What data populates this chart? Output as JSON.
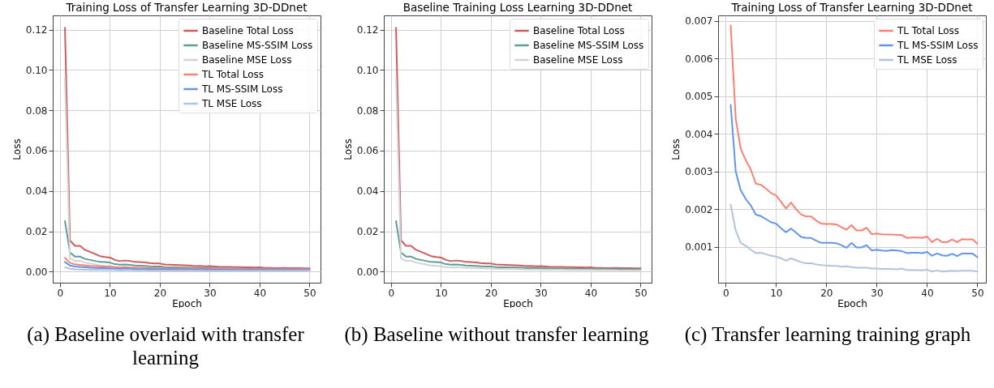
{
  "chart_data": [
    {
      "type": "line",
      "title": "Training Loss of Transfer Learning 3D-DDnet",
      "xlabel": "Epoch",
      "ylabel": "Loss",
      "x": [
        1,
        2,
        3,
        4,
        5,
        6,
        7,
        8,
        9,
        10,
        11,
        12,
        13,
        14,
        15,
        16,
        17,
        18,
        19,
        20,
        21,
        22,
        23,
        24,
        25,
        26,
        27,
        28,
        29,
        30,
        31,
        32,
        33,
        34,
        35,
        36,
        37,
        38,
        39,
        40,
        41,
        42,
        43,
        44,
        45,
        46,
        47,
        48,
        49,
        50
      ],
      "xlim": [
        -1.45,
        52.2
      ],
      "xticks": [
        0,
        10,
        20,
        30,
        40,
        50
      ],
      "ylim": [
        -0.0055,
        0.1271
      ],
      "yticks": [
        {
          "value": 0,
          "label": "0.00"
        },
        {
          "value": 0.02,
          "label": "0.02"
        },
        {
          "value": 0.04,
          "label": "0.04"
        },
        {
          "value": 0.06,
          "label": "0.06"
        },
        {
          "value": 0.08,
          "label": "0.08"
        },
        {
          "value": 0.1,
          "label": "0.10"
        },
        {
          "value": 0.12,
          "label": "0.12"
        }
      ],
      "grid": true,
      "legend": "top right",
      "line_style": "solid",
      "annotations": [
        "(a) Baseline overlaid with transfer learning"
      ],
      "series": [
        {
          "name": "Baseline Total Loss",
          "color": "#cd5c5c",
          "values": [
            0.121,
            0.0155,
            0.0128,
            0.0128,
            0.0108,
            0.0098,
            0.0088,
            0.0077,
            0.0073,
            0.007,
            0.0058,
            0.0052,
            0.0055,
            0.0053,
            0.0048,
            0.0047,
            0.0045,
            0.0042,
            0.004,
            0.004,
            0.0035,
            0.0034,
            0.0033,
            0.0032,
            0.0031,
            0.003,
            0.0027,
            0.0028,
            0.0026,
            0.0027,
            0.0025,
            0.0023,
            0.0023,
            0.0023,
            0.0022,
            0.0022,
            0.0021,
            0.0021,
            0.002,
            0.0021,
            0.0018,
            0.0018,
            0.0017,
            0.0017,
            0.0018,
            0.0017,
            0.0017,
            0.0017,
            0.0016,
            0.0016
          ]
        },
        {
          "name": "Baseline MS-SSIM Loss",
          "color": "#5f9e98",
          "values": [
            0.025,
            0.0095,
            0.0075,
            0.0075,
            0.0063,
            0.0058,
            0.0053,
            0.0048,
            0.0047,
            0.0045,
            0.0037,
            0.0034,
            0.0035,
            0.0033,
            0.003,
            0.0029,
            0.0028,
            0.0026,
            0.0025,
            0.0025,
            0.0022,
            0.0021,
            0.0021,
            0.002,
            0.002,
            0.0019,
            0.0017,
            0.0018,
            0.0017,
            0.0017,
            0.0016,
            0.0015,
            0.0015,
            0.0015,
            0.0014,
            0.0014,
            0.0014,
            0.0013,
            0.0013,
            0.0014,
            0.0012,
            0.0012,
            0.0012,
            0.0011,
            0.0012,
            0.0011,
            0.0011,
            0.0011,
            0.0011,
            0.0011
          ]
        },
        {
          "name": "Baseline MSE Loss",
          "color": "#d3d3d3",
          "values": [
            0.096,
            0.0065,
            0.0053,
            0.0053,
            0.0045,
            0.004,
            0.0035,
            0.003,
            0.0028,
            0.0026,
            0.0022,
            0.002,
            0.0021,
            0.002,
            0.0018,
            0.0018,
            0.0017,
            0.0016,
            0.0015,
            0.0015,
            0.0013,
            0.0013,
            0.0012,
            0.0012,
            0.0012,
            0.0011,
            0.001,
            0.001,
            0.001,
            0.001,
            0.0009,
            0.0009,
            0.0009,
            0.0009,
            0.0008,
            0.0008,
            0.0008,
            0.0008,
            0.0008,
            0.0008,
            0.0007,
            0.0007,
            0.0007,
            0.0007,
            0.0007,
            0.0006,
            0.0006,
            0.0006,
            0.0006,
            0.0006
          ]
        },
        {
          "name": "TL Total Loss",
          "color": "#fa8072",
          "values": [
            0.0069,
            0.0044,
            0.0036,
            0.0033,
            0.0031,
            0.0027,
            0.0027,
            0.0026,
            0.0024,
            0.0024,
            0.0022,
            0.002,
            0.0022,
            0.002,
            0.0019,
            0.0018,
            0.0018,
            0.0017,
            0.0016,
            0.0016,
            0.0016,
            0.0016,
            0.0015,
            0.0015,
            0.0016,
            0.0014,
            0.0014,
            0.0015,
            0.0013,
            0.0014,
            0.0013,
            0.0013,
            0.0013,
            0.0013,
            0.0013,
            0.0012,
            0.0013,
            0.0013,
            0.0012,
            0.0013,
            0.0011,
            0.0012,
            0.0011,
            0.0011,
            0.0012,
            0.0011,
            0.0012,
            0.0012,
            0.0012,
            0.0011
          ]
        },
        {
          "name": "TL MS-SSIM Loss",
          "color": "#6495ed",
          "values": [
            0.0048,
            0.003,
            0.0025,
            0.0023,
            0.0021,
            0.0019,
            0.0018,
            0.0017,
            0.0017,
            0.0016,
            0.0015,
            0.0014,
            0.0015,
            0.0014,
            0.0013,
            0.0012,
            0.0012,
            0.0012,
            0.0011,
            0.0011,
            0.0011,
            0.0011,
            0.0011,
            0.001,
            0.0011,
            0.001,
            0.001,
            0.0011,
            0.0009,
            0.0009,
            0.0009,
            0.0009,
            0.0009,
            0.0009,
            0.0009,
            0.0008,
            0.0009,
            0.0009,
            0.0008,
            0.0009,
            0.0008,
            0.0008,
            0.0008,
            0.0008,
            0.0008,
            0.0008,
            0.0008,
            0.0008,
            0.0008,
            0.0007
          ]
        },
        {
          "name": "TL MSE Loss",
          "color": "#b0c4de",
          "values": [
            0.0021,
            0.0014,
            0.0011,
            0.001,
            0.0009,
            0.0008,
            0.0009,
            0.0008,
            0.0008,
            0.0008,
            0.0007,
            0.0006,
            0.0007,
            0.0007,
            0.0006,
            0.0006,
            0.0006,
            0.0005,
            0.0005,
            0.0005,
            0.0005,
            0.0005,
            0.0005,
            0.0005,
            0.0005,
            0.0005,
            0.0005,
            0.0005,
            0.0004,
            0.0004,
            0.0004,
            0.0004,
            0.0004,
            0.0004,
            0.0004,
            0.0004,
            0.0004,
            0.0004,
            0.0004,
            0.0004,
            0.0004,
            0.0004,
            0.0004,
            0.0004,
            0.0004,
            0.0004,
            0.0004,
            0.0004,
            0.0004,
            0.0004
          ]
        }
      ]
    },
    {
      "type": "line",
      "title": "Baseline Training Loss Learning 3D-DDnet",
      "xlabel": "Epoch",
      "ylabel": "Loss",
      "x": [
        1,
        2,
        3,
        4,
        5,
        6,
        7,
        8,
        9,
        10,
        11,
        12,
        13,
        14,
        15,
        16,
        17,
        18,
        19,
        20,
        21,
        22,
        23,
        24,
        25,
        26,
        27,
        28,
        29,
        30,
        31,
        32,
        33,
        34,
        35,
        36,
        37,
        38,
        39,
        40,
        41,
        42,
        43,
        44,
        45,
        46,
        47,
        48,
        49,
        50
      ],
      "xlim": [
        -1.45,
        52.2
      ],
      "xticks": [
        0,
        10,
        20,
        30,
        40,
        50
      ],
      "ylim": [
        -0.0055,
        0.1271
      ],
      "yticks": [
        {
          "value": 0,
          "label": "0.00"
        },
        {
          "value": 0.02,
          "label": "0.02"
        },
        {
          "value": 0.04,
          "label": "0.04"
        },
        {
          "value": 0.06,
          "label": "0.06"
        },
        {
          "value": 0.08,
          "label": "0.08"
        },
        {
          "value": 0.1,
          "label": "0.10"
        },
        {
          "value": 0.12,
          "label": "0.12"
        }
      ],
      "grid": true,
      "legend": "top right",
      "line_style": "solid",
      "annotations": [
        "(b) Baseline without transfer learning"
      ],
      "series": [
        {
          "name": "Baseline Total Loss",
          "color": "#cd5c5c",
          "values": [
            0.121,
            0.0155,
            0.0128,
            0.0128,
            0.0108,
            0.0098,
            0.0088,
            0.0077,
            0.0073,
            0.007,
            0.0058,
            0.0052,
            0.0055,
            0.0053,
            0.0048,
            0.0047,
            0.0045,
            0.0042,
            0.004,
            0.004,
            0.0035,
            0.0034,
            0.0033,
            0.0032,
            0.0031,
            0.003,
            0.0027,
            0.0028,
            0.0026,
            0.0027,
            0.0025,
            0.0023,
            0.0023,
            0.0023,
            0.0022,
            0.0022,
            0.0021,
            0.0021,
            0.002,
            0.0021,
            0.0018,
            0.0018,
            0.0017,
            0.0017,
            0.0018,
            0.0017,
            0.0017,
            0.0017,
            0.0016,
            0.0016
          ]
        },
        {
          "name": "Baseline MS-SSIM Loss",
          "color": "#5f9e98",
          "values": [
            0.025,
            0.0095,
            0.0075,
            0.0075,
            0.0063,
            0.0058,
            0.0053,
            0.0048,
            0.0047,
            0.0045,
            0.0037,
            0.0034,
            0.0035,
            0.0033,
            0.003,
            0.0029,
            0.0028,
            0.0026,
            0.0025,
            0.0025,
            0.0022,
            0.0021,
            0.0021,
            0.002,
            0.002,
            0.0019,
            0.0017,
            0.0018,
            0.0017,
            0.0017,
            0.0016,
            0.0015,
            0.0015,
            0.0015,
            0.0014,
            0.0014,
            0.0014,
            0.0013,
            0.0013,
            0.0014,
            0.0012,
            0.0012,
            0.0012,
            0.0011,
            0.0012,
            0.0011,
            0.0011,
            0.0011,
            0.0011,
            0.0011
          ]
        },
        {
          "name": "Baseline MSE Loss",
          "color": "#d3d3d3",
          "values": [
            0.096,
            0.0065,
            0.0053,
            0.0053,
            0.0045,
            0.004,
            0.0035,
            0.003,
            0.0028,
            0.0026,
            0.0022,
            0.002,
            0.0021,
            0.002,
            0.0018,
            0.0018,
            0.0017,
            0.0016,
            0.0015,
            0.0015,
            0.0013,
            0.0013,
            0.0012,
            0.0012,
            0.0012,
            0.0011,
            0.001,
            0.001,
            0.001,
            0.001,
            0.0009,
            0.0009,
            0.0009,
            0.0009,
            0.0008,
            0.0008,
            0.0008,
            0.0008,
            0.0008,
            0.0008,
            0.0007,
            0.0007,
            0.0007,
            0.0007,
            0.0007,
            0.0006,
            0.0006,
            0.0006,
            0.0006,
            0.0006
          ]
        }
      ]
    },
    {
      "type": "line",
      "title": "Training Loss of Transfer Learning 3D-DDnet",
      "xlabel": "Epoch",
      "ylabel": "Loss",
      "x": [
        1,
        2,
        3,
        4,
        5,
        6,
        7,
        8,
        9,
        10,
        11,
        12,
        13,
        14,
        15,
        16,
        17,
        18,
        19,
        20,
        21,
        22,
        23,
        24,
        25,
        26,
        27,
        28,
        29,
        30,
        31,
        32,
        33,
        34,
        35,
        36,
        37,
        38,
        39,
        40,
        41,
        42,
        43,
        44,
        45,
        46,
        47,
        48,
        49,
        50
      ],
      "xlim": [
        -1.5,
        51.7
      ],
      "xticks": [
        0,
        10,
        20,
        30,
        40,
        50
      ],
      "ylim": [
        5.5e-05,
        0.00714
      ],
      "yticks": [
        0.001,
        0.002,
        0.003,
        0.004,
        0.005,
        0.006,
        0.007
      ],
      "grid": true,
      "legend": "top right",
      "line_style": "solid",
      "annotations": [
        "(c) Transfer learning training graph"
      ],
      "series": [
        {
          "name": "TL Total Loss",
          "color": "#fa8072",
          "values": [
            0.00687,
            0.0044,
            0.0036,
            0.0033,
            0.00305,
            0.00268,
            0.00265,
            0.00255,
            0.00243,
            0.00237,
            0.0022,
            0.00202,
            0.00218,
            0.002,
            0.00186,
            0.00181,
            0.00181,
            0.0017,
            0.00162,
            0.00161,
            0.00161,
            0.0016,
            0.00153,
            0.00146,
            0.00158,
            0.00144,
            0.00144,
            0.00151,
            0.00134,
            0.00136,
            0.00134,
            0.00133,
            0.00133,
            0.00132,
            0.00132,
            0.00124,
            0.00125,
            0.00125,
            0.00124,
            0.00128,
            0.00113,
            0.00122,
            0.00113,
            0.00113,
            0.0012,
            0.00113,
            0.00121,
            0.0012,
            0.00121,
            0.00109
          ]
        },
        {
          "name": "TL MS-SSIM Loss",
          "color": "#6495ed",
          "values": [
            0.00477,
            0.003,
            0.0025,
            0.00227,
            0.0021,
            0.00186,
            0.00182,
            0.00174,
            0.00166,
            0.00162,
            0.0015,
            0.00139,
            0.00149,
            0.00138,
            0.00127,
            0.00124,
            0.00124,
            0.00117,
            0.00111,
            0.00111,
            0.00111,
            0.0011,
            0.00105,
            0.00098,
            0.00111,
            0.00099,
            0.00099,
            0.00105,
            0.00091,
            0.00093,
            0.00091,
            0.0009,
            0.00092,
            0.00091,
            0.00089,
            0.00084,
            0.00085,
            0.00085,
            0.00084,
            0.00087,
            0.00077,
            0.00083,
            0.00078,
            0.00077,
            0.00082,
            0.00076,
            0.00083,
            0.00083,
            0.00083,
            0.00073
          ]
        },
        {
          "name": "TL MSE Loss",
          "color": "#b0c4de",
          "values": [
            0.00212,
            0.00143,
            0.00111,
            0.00103,
            0.00093,
            0.00084,
            0.00085,
            0.00081,
            0.00077,
            0.00075,
            0.0007,
            0.00064,
            0.0007,
            0.00065,
            0.0006,
            0.00057,
            0.00057,
            0.00054,
            0.00052,
            0.00051,
            0.0005,
            0.0005,
            0.00048,
            0.00049,
            0.00047,
            0.00045,
            0.00045,
            0.00045,
            0.00043,
            0.00043,
            0.00042,
            0.00042,
            0.00042,
            0.00041,
            0.00043,
            0.00039,
            0.00039,
            0.00039,
            0.00038,
            0.0004,
            0.00035,
            0.00038,
            0.00035,
            0.00036,
            0.00037,
            0.00036,
            0.00037,
            0.00037,
            0.00037,
            0.00035
          ]
        }
      ]
    }
  ]
}
